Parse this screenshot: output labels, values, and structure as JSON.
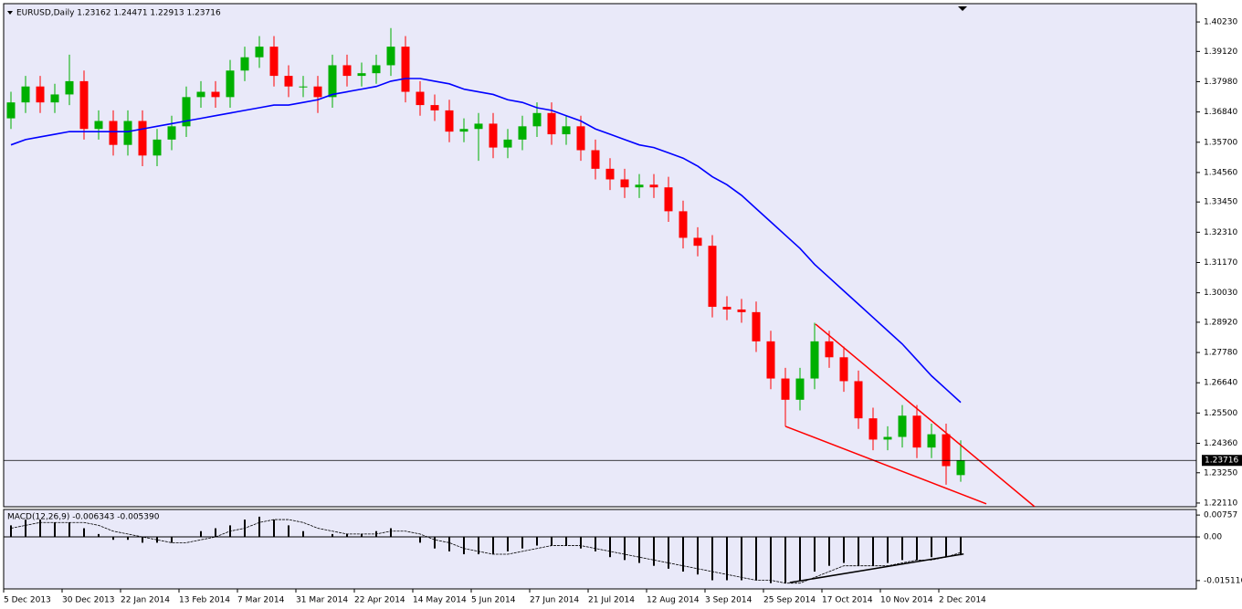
{
  "chart_data": [
    {
      "type": "candlestick",
      "title": "EURUSD,Daily 1.23162 1.24471 1.22913 1.23716",
      "categories": [
        "5 Dec 2013",
        null,
        null,
        null,
        "30 Dec 2013",
        null,
        null,
        null,
        "22 Jan 2014",
        null,
        null,
        null,
        "13 Feb 2014",
        null,
        null,
        null,
        "7 Mar 2014",
        null,
        null,
        null,
        "31 Mar 2014",
        null,
        null,
        null,
        "22 Apr 2014",
        null,
        null,
        null,
        "14 May 2014",
        null,
        null,
        null,
        "5 Jun 2014",
        null,
        null,
        null,
        "27 Jun 2014",
        null,
        null,
        null,
        "21 Jul 2014",
        null,
        null,
        null,
        "12 Aug 2014",
        null,
        null,
        null,
        "3 Sep 2014",
        null,
        null,
        null,
        "25 Sep 2014",
        null,
        null,
        null,
        "17 Oct 2014",
        null,
        null,
        null,
        "10 Nov 2014",
        null,
        null,
        null,
        "2 Dec 2014",
        null
      ],
      "open": [
        1.366,
        1.372,
        1.378,
        1.372,
        1.375,
        1.38,
        1.362,
        1.365,
        1.356,
        1.365,
        1.352,
        1.358,
        1.363,
        1.374,
        1.376,
        1.374,
        1.384,
        1.389,
        1.393,
        1.382,
        1.378,
        1.378,
        1.374,
        1.386,
        1.382,
        1.383,
        1.386,
        1.393,
        1.376,
        1.371,
        1.369,
        1.361,
        1.362,
        1.364,
        1.355,
        1.358,
        1.363,
        1.368,
        1.36,
        1.363,
        1.354,
        1.347,
        1.343,
        1.34,
        1.341,
        1.34,
        1.331,
        1.321,
        1.318,
        1.295,
        1.294,
        1.293,
        1.282,
        1.268,
        1.26,
        1.268,
        1.282,
        1.276,
        1.267,
        1.253,
        1.245,
        1.246,
        1.254,
        1.242,
        1.247,
        1.23162
      ],
      "high": [
        1.376,
        1.382,
        1.382,
        1.379,
        1.39,
        1.384,
        1.369,
        1.369,
        1.369,
        1.369,
        1.362,
        1.367,
        1.378,
        1.38,
        1.38,
        1.388,
        1.393,
        1.397,
        1.397,
        1.386,
        1.382,
        1.382,
        1.39,
        1.39,
        1.387,
        1.39,
        1.4,
        1.397,
        1.38,
        1.375,
        1.373,
        1.366,
        1.368,
        1.368,
        1.362,
        1.367,
        1.372,
        1.372,
        1.367,
        1.367,
        1.358,
        1.351,
        1.347,
        1.345,
        1.345,
        1.344,
        1.335,
        1.325,
        1.322,
        1.299,
        1.298,
        1.297,
        1.286,
        1.272,
        1.272,
        1.289,
        1.286,
        1.28,
        1.271,
        1.257,
        1.25,
        1.258,
        1.258,
        1.251,
        1.251,
        1.24471
      ],
      "low": [
        1.362,
        1.368,
        1.368,
        1.368,
        1.371,
        1.358,
        1.358,
        1.352,
        1.352,
        1.348,
        1.348,
        1.354,
        1.359,
        1.37,
        1.37,
        1.37,
        1.38,
        1.385,
        1.378,
        1.374,
        1.374,
        1.368,
        1.37,
        1.378,
        1.378,
        1.379,
        1.382,
        1.372,
        1.367,
        1.365,
        1.357,
        1.357,
        1.35,
        1.351,
        1.351,
        1.354,
        1.359,
        1.356,
        1.356,
        1.35,
        1.343,
        1.339,
        1.336,
        1.336,
        1.336,
        1.327,
        1.317,
        1.314,
        1.291,
        1.29,
        1.289,
        1.278,
        1.264,
        1.25,
        1.256,
        1.264,
        1.272,
        1.263,
        1.249,
        1.241,
        1.241,
        1.242,
        1.238,
        1.238,
        1.228,
        1.22913
      ],
      "close": [
        1.372,
        1.378,
        1.372,
        1.375,
        1.38,
        1.362,
        1.365,
        1.356,
        1.365,
        1.352,
        1.358,
        1.363,
        1.374,
        1.376,
        1.374,
        1.384,
        1.389,
        1.393,
        1.382,
        1.378,
        1.378,
        1.374,
        1.386,
        1.382,
        1.383,
        1.386,
        1.393,
        1.376,
        1.371,
        1.369,
        1.361,
        1.362,
        1.364,
        1.355,
        1.358,
        1.363,
        1.368,
        1.36,
        1.363,
        1.354,
        1.347,
        1.343,
        1.34,
        1.341,
        1.34,
        1.331,
        1.321,
        1.318,
        1.295,
        1.294,
        1.293,
        1.282,
        1.268,
        1.26,
        1.268,
        1.282,
        1.276,
        1.267,
        1.253,
        1.245,
        1.246,
        1.254,
        1.242,
        1.247,
        1.235,
        1.23716
      ],
      "up_color": "#00b000",
      "down_color": "#ff0000",
      "moving_average": {
        "color": "#0000ff",
        "values": [
          1.356,
          1.358,
          1.359,
          1.36,
          1.361,
          1.361,
          1.361,
          1.361,
          1.361,
          1.362,
          1.363,
          1.364,
          1.365,
          1.366,
          1.367,
          1.368,
          1.369,
          1.37,
          1.371,
          1.371,
          1.372,
          1.373,
          1.375,
          1.376,
          1.377,
          1.378,
          1.38,
          1.381,
          1.381,
          1.38,
          1.379,
          1.377,
          1.376,
          1.375,
          1.373,
          1.372,
          1.37,
          1.369,
          1.367,
          1.365,
          1.362,
          1.36,
          1.358,
          1.356,
          1.355,
          1.353,
          1.351,
          1.348,
          1.344,
          1.341,
          1.337,
          1.332,
          1.327,
          1.322,
          1.317,
          1.311,
          1.306,
          1.301,
          1.296,
          1.291,
          1.286,
          1.281,
          1.275,
          1.269,
          1.264,
          1.259
        ]
      },
      "trendlines": [
        {
          "color": "#ff0000",
          "x": [
            55.06,
            70.06
          ],
          "y": [
            1.2885,
            1.2197
          ]
        },
        {
          "color": "#ff0000",
          "x": [
            53,
            66.75
          ],
          "y": [
            1.25,
            1.2208
          ]
        }
      ],
      "ylim": [
        1.2197,
        1.4092
      ],
      "yticks": [
        {
          "value": 1.4023,
          "label": "1.40230"
        },
        {
          "value": 1.3912,
          "label": "1.39120"
        },
        {
          "value": 1.3798,
          "label": "1.37980"
        },
        {
          "value": 1.3684,
          "label": "1.36840"
        },
        {
          "value": 1.357,
          "label": "1.35700"
        },
        {
          "value": 1.3456,
          "label": "1.34560"
        },
        {
          "value": 1.3345,
          "label": "1.33450"
        },
        {
          "value": 1.3231,
          "label": "1.32310"
        },
        {
          "value": 1.3117,
          "label": "1.31170"
        },
        {
          "value": 1.3003,
          "label": "1.30030"
        },
        {
          "value": 1.2892,
          "label": "1.28920"
        },
        {
          "value": 1.2778,
          "label": "1.27780"
        },
        {
          "value": 1.2664,
          "label": "1.26640"
        },
        {
          "value": 1.255,
          "label": "1.25500"
        },
        {
          "value": 1.2436,
          "label": "1.24360"
        },
        {
          "value": 1.2325,
          "label": "1.23250"
        },
        {
          "value": 1.2211,
          "label": "1.22110"
        }
      ]
    },
    {
      "type": "macd",
      "title": "MACD(12,26,9) -0.006343 -0.005390",
      "histogram": [
        0.004,
        0.006,
        0.006,
        0.005,
        0.005,
        0.003,
        0.001,
        -0.001,
        -0.001,
        -0.002,
        -0.002,
        -0.002,
        0,
        0.002,
        0.003,
        0.004,
        0.006,
        0.007,
        0.006,
        0.004,
        0.002,
        0,
        0.001,
        0.001,
        0.001,
        0.002,
        0.003,
        0,
        -0.002,
        -0.004,
        -0.005,
        -0.006,
        -0.006,
        -0.006,
        -0.005,
        -0.004,
        -0.003,
        -0.003,
        -0.003,
        -0.004,
        -0.005,
        -0.007,
        -0.008,
        -0.009,
        -0.01,
        -0.011,
        -0.012,
        -0.013,
        -0.015,
        -0.015,
        -0.015,
        -0.015,
        -0.016,
        -0.016,
        -0.015,
        -0.012,
        -0.01,
        -0.009,
        -0.01,
        -0.01,
        -0.009,
        -0.008,
        -0.008,
        -0.007,
        -0.007,
        -0.006343
      ],
      "signal": [
        0.003,
        0.004,
        0.005,
        0.005,
        0.005,
        0.005,
        0.004,
        0.002,
        0.001,
        0,
        -0.001,
        -0.002,
        -0.002,
        -0.001,
        0,
        0.002,
        0.003,
        0.005,
        0.006,
        0.006,
        0.005,
        0.003,
        0.002,
        0.001,
        0.001,
        0.001,
        0.002,
        0.002,
        0.001,
        -0.001,
        -0.002,
        -0.004,
        -0.005,
        -0.006,
        -0.006,
        -0.005,
        -0.004,
        -0.003,
        -0.003,
        -0.003,
        -0.004,
        -0.005,
        -0.006,
        -0.007,
        -0.008,
        -0.009,
        -0.01,
        -0.011,
        -0.012,
        -0.013,
        -0.014,
        -0.015,
        -0.015,
        -0.016,
        -0.016,
        -0.014,
        -0.012,
        -0.01,
        -0.01,
        -0.01,
        -0.01,
        -0.009,
        -0.008,
        -0.008,
        -0.007,
        -0.00539
      ],
      "color": "#000000",
      "trendlines": [
        {
          "color": "#000000",
          "x": [
            53.3,
            65.2
          ],
          "y": [
            -0.0158,
            -0.0059
          ]
        }
      ],
      "ylim": [
        -0.018,
        0.0095
      ],
      "yticks": [
        {
          "value": 0.00757,
          "label": "0.00757"
        },
        {
          "value": 0,
          "label": "0.00"
        },
        {
          "value": -0.015116,
          "label": "-0.015116"
        }
      ]
    }
  ]
}
